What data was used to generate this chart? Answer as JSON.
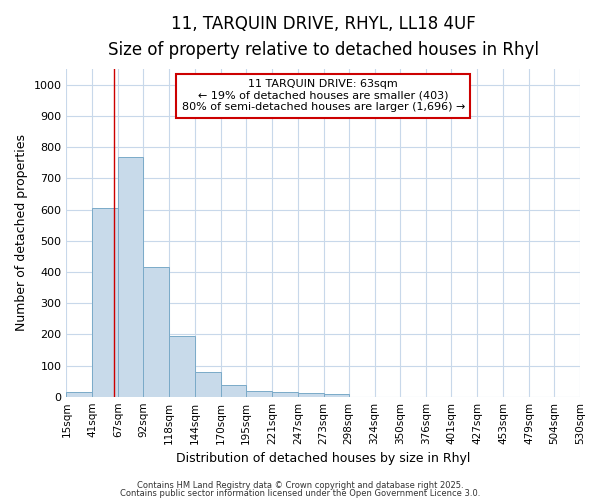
{
  "title1": "11, TARQUIN DRIVE, RHYL, LL18 4UF",
  "title2": "Size of property relative to detached houses in Rhyl",
  "xlabel": "Distribution of detached houses by size in Rhyl",
  "ylabel": "Number of detached properties",
  "bar_edges": [
    15,
    41,
    67,
    92,
    118,
    144,
    170,
    195,
    221,
    247,
    273,
    298,
    324,
    350,
    376,
    401,
    427,
    453,
    479,
    504,
    530
  ],
  "bar_values": [
    15,
    605,
    770,
    415,
    195,
    78,
    38,
    18,
    15,
    11,
    10,
    0,
    0,
    0,
    0,
    0,
    0,
    0,
    0,
    0
  ],
  "bar_color": "#c8daea",
  "bar_edge_color": "#7aaac8",
  "bar_edge_width": 0.7,
  "red_line_x": 63,
  "red_line_color": "#cc0000",
  "ylim": [
    0,
    1050
  ],
  "yticks": [
    0,
    100,
    200,
    300,
    400,
    500,
    600,
    700,
    800,
    900,
    1000
  ],
  "annotation_text": "11 TARQUIN DRIVE: 63sqm\n← 19% of detached houses are smaller (403)\n80% of semi-detached houses are larger (1,696) →",
  "annotation_box_color": "#ffffff",
  "annotation_box_edge_color": "#cc0000",
  "annotation_fontsize": 8,
  "footer_text1": "Contains HM Land Registry data © Crown copyright and database right 2025.",
  "footer_text2": "Contains public sector information licensed under the Open Government Licence 3.0.",
  "background_color": "#ffffff",
  "plot_bg_color": "#ffffff",
  "grid_color": "#c8d8ea",
  "title_fontsize": 12,
  "subtitle_fontsize": 10
}
